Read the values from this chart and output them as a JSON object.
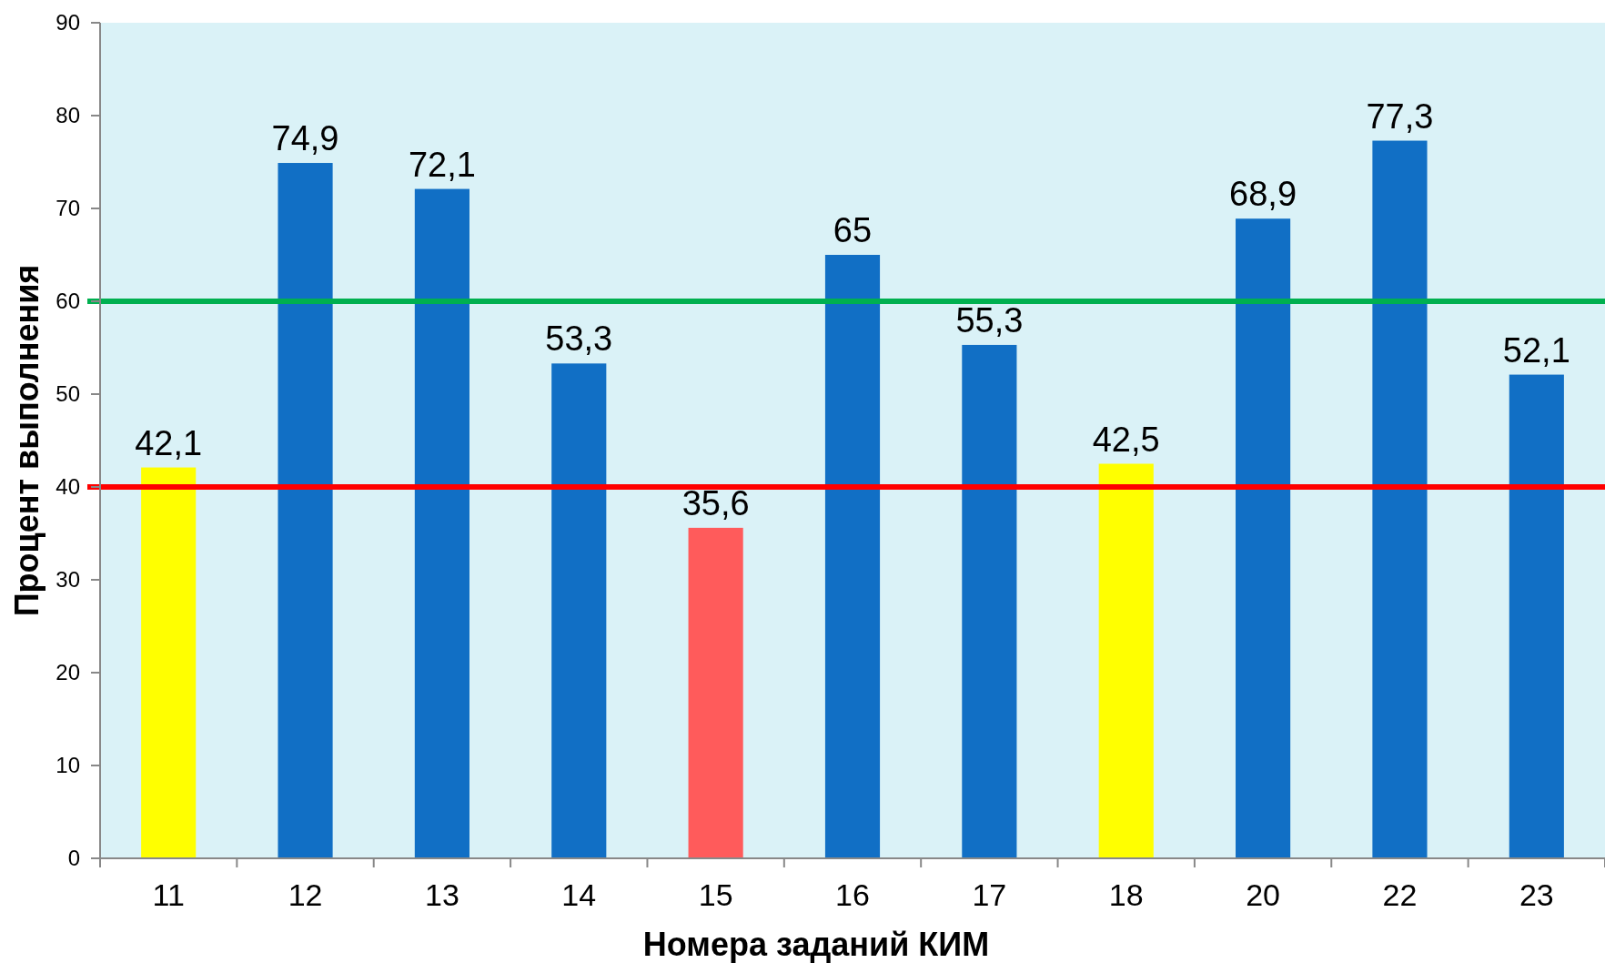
{
  "chart_data": {
    "type": "bar",
    "xlabel": "Номера заданий КИМ",
    "ylabel": "Процент выполнения",
    "categories": [
      "11",
      "12",
      "13",
      "14",
      "15",
      "16",
      "17",
      "18",
      "20",
      "22",
      "23"
    ],
    "values": [
      42.1,
      74.9,
      72.1,
      53.3,
      35.6,
      65,
      55.3,
      42.5,
      68.9,
      77.3,
      52.1
    ],
    "value_labels": [
      "42,1",
      "74,9",
      "72,1",
      "53,3",
      "35,6",
      "65",
      "55,3",
      "42,5",
      "68,9",
      "77,3",
      "52,1"
    ],
    "colors": [
      "#ffff00",
      "#116fc5",
      "#116fc5",
      "#116fc5",
      "#ff5b5b",
      "#116fc5",
      "#116fc5",
      "#ffff00",
      "#116fc5",
      "#116fc5",
      "#116fc5"
    ],
    "ylim": [
      0,
      90
    ],
    "yticks": [
      0,
      10,
      20,
      30,
      40,
      50,
      60,
      70,
      80,
      90
    ],
    "grid": false,
    "ref_lines": [
      {
        "axis": "y",
        "value": 40,
        "color": "#ff0000"
      },
      {
        "axis": "y",
        "value": 60,
        "color": "#00b050"
      }
    ]
  }
}
